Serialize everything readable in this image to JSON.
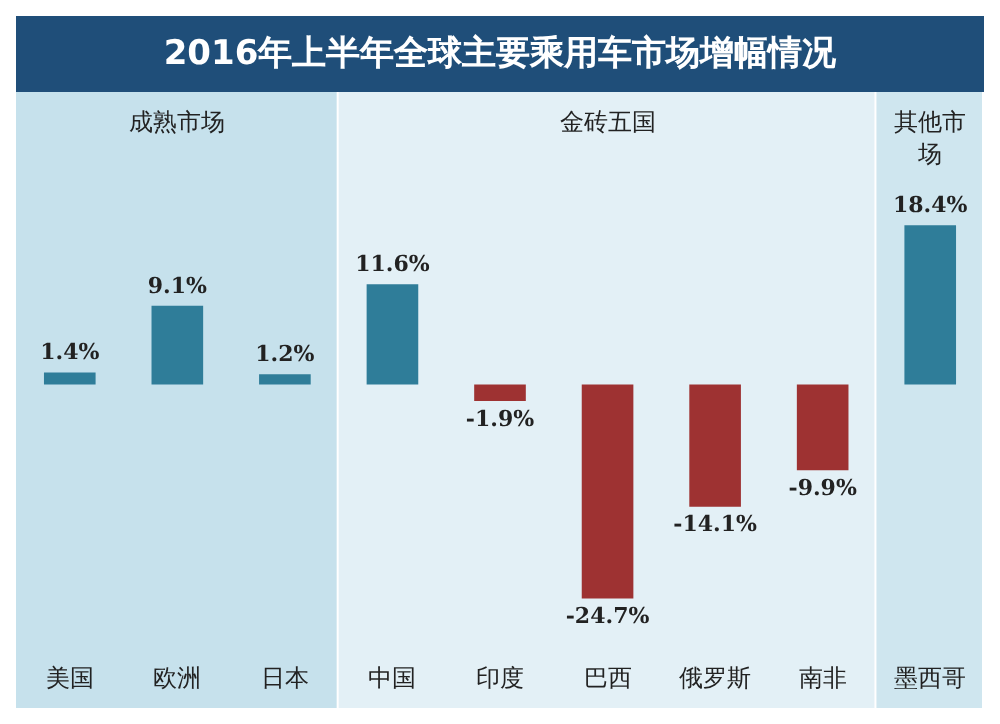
{
  "chart_data": {
    "type": "bar",
    "title": "2016年上半年全球主要乘用车市场增幅情况",
    "categories": [
      "美国",
      "欧洲",
      "日本",
      "中国",
      "印度",
      "巴西",
      "俄罗斯",
      "南非",
      "墨西哥"
    ],
    "values": [
      1.4,
      9.1,
      1.2,
      11.6,
      -1.9,
      -24.7,
      -14.1,
      -9.9,
      18.4
    ],
    "colors": [
      "#2f7d99",
      "#2f7d99",
      "#2f7d99",
      "#2f7d99",
      "#9e3232",
      "#9e3232",
      "#9e3232",
      "#9e3232",
      "#2f7d99"
    ],
    "value_labels": [
      "1.4%",
      "9.1%",
      "1.2%",
      "11.6%",
      "-1.9%",
      "-24.7%",
      "-14.1%",
      "-9.9%",
      "18.4%"
    ],
    "bands": [
      {
        "axis": "x",
        "from": "美国",
        "to": "日本",
        "label": "成熟市场",
        "color": "#c6e1ec"
      },
      {
        "axis": "x",
        "from": "中国",
        "to": "南非",
        "label": "金砖五国",
        "color": "#e3f0f6"
      },
      {
        "axis": "x",
        "from": "墨西哥",
        "to": "墨西哥",
        "label": "其他市场",
        "color": "#cfe6ef"
      }
    ],
    "grid": false,
    "legend": false
  }
}
